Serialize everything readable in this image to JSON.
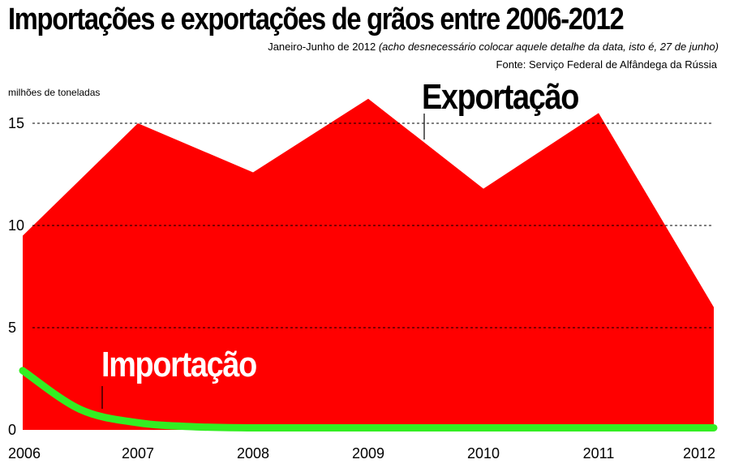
{
  "header": {
    "title": "Importações e exportações de grãos entre 2006-2012",
    "subtitle_main": "Janeiro-Junho de 2012",
    "subtitle_note": "(acho desnecessário colocar aquele detalhe da data, isto é, 27 de junho)",
    "source": "Fonte: Serviço Federal de Alfândega da Rússia"
  },
  "chart_data": {
    "type": "area",
    "ylabel": "milhões de toneladas",
    "ylim": [
      0,
      16.5
    ],
    "y_ticks": [
      0,
      5,
      10,
      15
    ],
    "x_ticks": [
      "2006",
      "2007",
      "2008",
      "2009",
      "2010",
      "2011",
      "2012"
    ],
    "grid": "dashed horizontal at 5, 10, 15",
    "series": [
      {
        "name": "Exportação",
        "color": "#ff0000",
        "x": [
          2006,
          2007,
          2008,
          2009,
          2010,
          2011,
          2012
        ],
        "values": [
          9.5,
          15.0,
          12.6,
          16.2,
          11.8,
          15.5,
          6.0
        ]
      },
      {
        "name": "Importação",
        "color": "#33ee22",
        "x": [
          2006,
          2006.5,
          2007,
          2007.5,
          2008,
          2009,
          2010,
          2011,
          2012
        ],
        "values": [
          2.9,
          1.0,
          0.35,
          0.15,
          0.1,
          0.1,
          0.1,
          0.1,
          0.1
        ]
      }
    ]
  }
}
